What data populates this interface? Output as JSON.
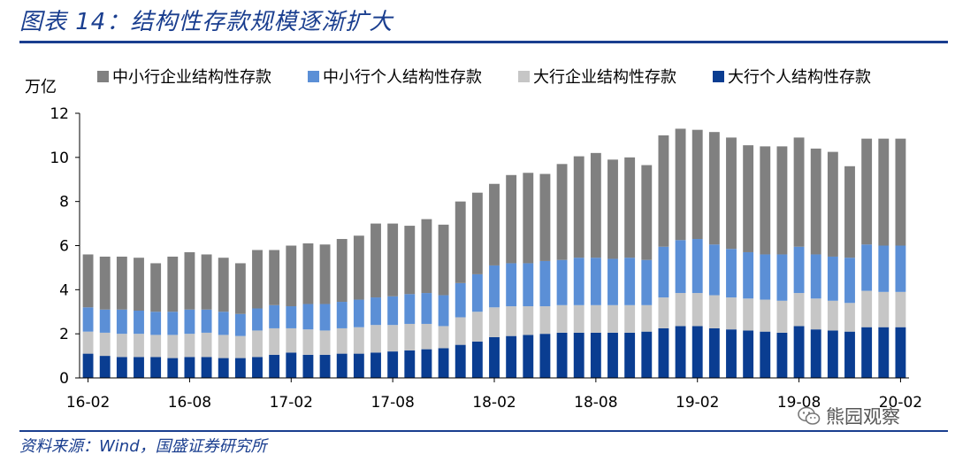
{
  "figure": {
    "title": "图表 14：结构性存款规模逐渐扩大",
    "source": "资料来源：Wind，国盛证券研究所",
    "watermark": "熊园观察"
  },
  "colors": {
    "accent": "#1a3e8f",
    "series": [
      "#808080",
      "#5b8fd6",
      "#c6c6c6",
      "#0a3d91"
    ]
  },
  "icons": {
    "watermark": "wechat-icon"
  },
  "chart_data": {
    "type": "bar",
    "stacked": true,
    "title": "",
    "ylabel": "万亿",
    "xlabel": "",
    "ylim": [
      0,
      12
    ],
    "yticks": [
      0,
      2,
      4,
      6,
      8,
      10,
      12
    ],
    "legend_position": "top",
    "categories": [
      "16-02",
      "16-03",
      "16-04",
      "16-05",
      "16-06",
      "16-07",
      "16-08",
      "16-09",
      "16-10",
      "16-11",
      "16-12",
      "17-01",
      "17-02",
      "17-03",
      "17-04",
      "17-05",
      "17-06",
      "17-07",
      "17-08",
      "17-09",
      "17-10",
      "17-11",
      "17-12",
      "18-01",
      "18-02",
      "18-03",
      "18-04",
      "18-05",
      "18-06",
      "18-07",
      "18-08",
      "18-09",
      "18-10",
      "18-11",
      "18-12",
      "19-01",
      "19-02",
      "19-03",
      "19-04",
      "19-05",
      "19-06",
      "19-07",
      "19-08",
      "19-09",
      "19-10",
      "19-11",
      "19-12",
      "20-01",
      "20-02"
    ],
    "xtick_labels": [
      {
        "index": 0,
        "label": "16-02"
      },
      {
        "index": 6,
        "label": "16-08"
      },
      {
        "index": 12,
        "label": "17-02"
      },
      {
        "index": 18,
        "label": "17-08"
      },
      {
        "index": 24,
        "label": "18-02"
      },
      {
        "index": 30,
        "label": "18-08"
      },
      {
        "index": 36,
        "label": "19-02"
      },
      {
        "index": 42,
        "label": "19-08"
      },
      {
        "index": 48,
        "label": "20-02"
      }
    ],
    "series": [
      {
        "name": "大行个人结构性存款",
        "values": [
          1.1,
          1.0,
          0.95,
          0.95,
          0.95,
          0.9,
          0.95,
          0.95,
          0.9,
          0.9,
          0.95,
          1.05,
          1.15,
          1.05,
          1.05,
          1.1,
          1.1,
          1.15,
          1.2,
          1.25,
          1.3,
          1.35,
          1.5,
          1.65,
          1.85,
          1.9,
          1.95,
          2.0,
          2.05,
          2.05,
          2.05,
          2.05,
          2.05,
          2.1,
          2.25,
          2.35,
          2.35,
          2.25,
          2.2,
          2.15,
          2.1,
          2.05,
          2.35,
          2.2,
          2.15,
          2.1,
          2.3,
          2.3,
          2.3
        ]
      },
      {
        "name": "大行企业结构性存款",
        "values": [
          1.0,
          1.05,
          1.05,
          1.05,
          1.0,
          1.05,
          1.05,
          1.1,
          1.05,
          1.0,
          1.2,
          1.2,
          1.1,
          1.15,
          1.1,
          1.15,
          1.2,
          1.25,
          1.2,
          1.2,
          1.15,
          1.0,
          1.25,
          1.35,
          1.35,
          1.35,
          1.3,
          1.25,
          1.25,
          1.25,
          1.25,
          1.25,
          1.25,
          1.2,
          1.4,
          1.5,
          1.5,
          1.5,
          1.45,
          1.45,
          1.45,
          1.45,
          1.5,
          1.4,
          1.35,
          1.3,
          1.65,
          1.6,
          1.6
        ]
      },
      {
        "name": "中小行个人结构性存款",
        "values": [
          1.1,
          1.05,
          1.1,
          1.05,
          1.05,
          1.05,
          1.1,
          1.05,
          1.05,
          1.0,
          1.0,
          1.05,
          1.0,
          1.15,
          1.2,
          1.2,
          1.25,
          1.25,
          1.3,
          1.35,
          1.4,
          1.4,
          1.55,
          1.7,
          1.9,
          1.95,
          1.95,
          2.05,
          2.05,
          2.15,
          2.15,
          2.1,
          2.15,
          2.05,
          2.3,
          2.4,
          2.45,
          2.3,
          2.2,
          2.1,
          2.05,
          2.1,
          2.1,
          2.0,
          2.0,
          2.05,
          2.1,
          2.1,
          2.1
        ]
      },
      {
        "name": "中小行企业结构性存款",
        "values": [
          2.4,
          2.4,
          2.4,
          2.4,
          2.2,
          2.5,
          2.6,
          2.5,
          2.45,
          2.3,
          2.65,
          2.5,
          2.75,
          2.75,
          2.7,
          2.85,
          2.9,
          3.35,
          3.3,
          3.1,
          3.35,
          3.2,
          3.7,
          3.7,
          3.7,
          4.0,
          4.1,
          3.95,
          4.35,
          4.6,
          4.75,
          4.5,
          4.55,
          4.3,
          5.05,
          5.05,
          4.95,
          5.1,
          5.05,
          4.85,
          4.9,
          4.9,
          4.95,
          4.8,
          4.75,
          4.15,
          4.8,
          4.85,
          4.85
        ]
      }
    ],
    "legend_order": [
      "中小行企业结构性存款",
      "中小行个人结构性存款",
      "大行企业结构性存款",
      "大行个人结构性存款"
    ]
  }
}
